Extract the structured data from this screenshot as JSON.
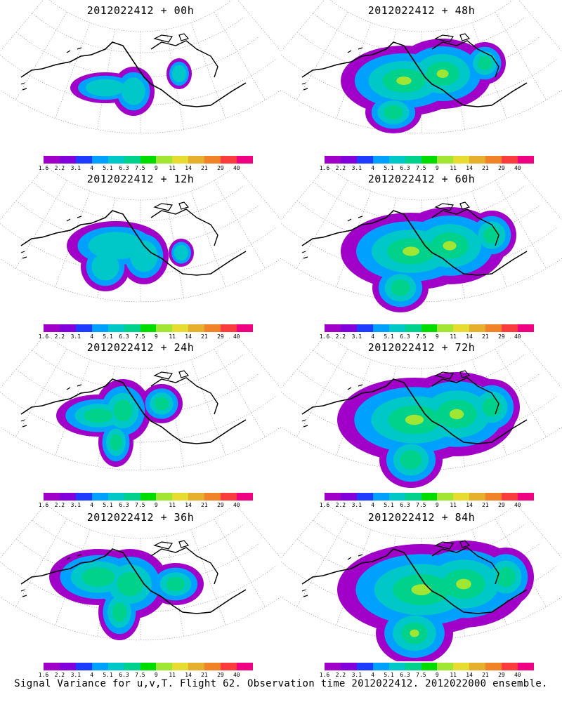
{
  "panels": [
    {
      "title": "2012022412 + 00h",
      "stage": 0
    },
    {
      "title": "2012022412 + 48h",
      "stage": 4
    },
    {
      "title": "2012022412 + 12h",
      "stage": 1
    },
    {
      "title": "2012022412 + 60h",
      "stage": 5
    },
    {
      "title": "2012022412 + 24h",
      "stage": 2
    },
    {
      "title": "2012022412 + 72h",
      "stage": 6
    },
    {
      "title": "2012022412 + 36h",
      "stage": 3
    },
    {
      "title": "2012022412 + 84h",
      "stage": 7
    }
  ],
  "colorbar": {
    "labels": [
      "1.6",
      "2.2",
      "3.1",
      "4",
      "5.1",
      "6.3",
      "7.5",
      "9",
      "11",
      "14",
      "21",
      "29",
      "40"
    ],
    "colors": [
      "#a000c8",
      "#8200dc",
      "#1e3cff",
      "#00a0ff",
      "#00c8c8",
      "#00d28c",
      "#00dc00",
      "#a0e632",
      "#e6dc32",
      "#e6af2d",
      "#f08228",
      "#fa3c3c",
      "#f00082"
    ]
  },
  "footer": "Signal Variance for u,v,T. Flight 62. Observation time 2012022412. 2012022000 ensemble."
}
